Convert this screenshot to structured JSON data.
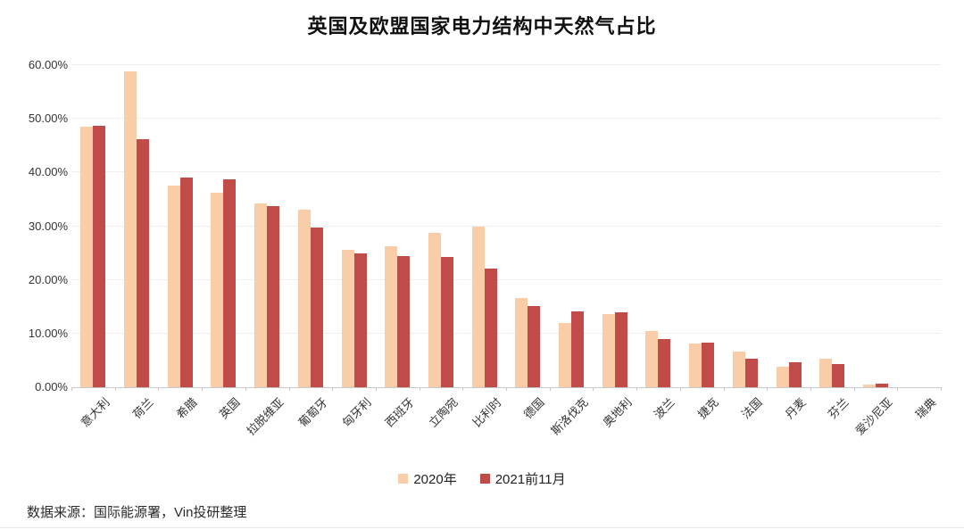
{
  "title": "英国及欧盟国家电力结构中天然气占比",
  "footer": {
    "source_text": "数据来源：国际能源署，Vin投研整理"
  },
  "colors": {
    "series_2020": "#F9CDA8",
    "series_2021": "#C04B48",
    "gridline": "#efefef",
    "axis_line": "#c9c9c9",
    "title_text": "#111111",
    "axis_text": "#333333"
  },
  "chart_data": {
    "type": "bar",
    "title": "英国及欧盟国家电力结构中天然气占比",
    "xlabel": "",
    "ylabel": "",
    "ylim": [
      0,
      60
    ],
    "ytick_step": 10,
    "ytick_labels": [
      "0.00%",
      "10.00%",
      "20.00%",
      "30.00%",
      "40.00%",
      "50.00%",
      "60.00%"
    ],
    "grid": true,
    "legend_position": "bottom",
    "categories": [
      "意大利",
      "荷兰",
      "希腊",
      "英国",
      "拉脱维亚",
      "葡萄牙",
      "匈牙利",
      "西班牙",
      "立陶宛",
      "比利时",
      "德国",
      "斯洛伐克",
      "奥地利",
      "波兰",
      "捷克",
      "法国",
      "丹麦",
      "芬兰",
      "爱沙尼亚",
      "瑞典"
    ],
    "series": [
      {
        "name": "2020年",
        "color": "#F9CDA8",
        "values": [
          48.5,
          58.8,
          37.5,
          36.3,
          34.3,
          33.0,
          25.6,
          26.3,
          28.7,
          29.9,
          16.6,
          12.0,
          13.6,
          10.4,
          8.2,
          6.6,
          3.9,
          5.3,
          0.5,
          0.0
        ]
      },
      {
        "name": "2021前11月",
        "color": "#C04B48",
        "values": [
          48.7,
          46.2,
          39.0,
          38.7,
          33.7,
          29.8,
          25.0,
          24.5,
          24.2,
          22.1,
          15.1,
          14.2,
          14.0,
          9.0,
          8.3,
          5.3,
          4.6,
          4.4,
          0.6,
          0.0
        ]
      }
    ]
  }
}
